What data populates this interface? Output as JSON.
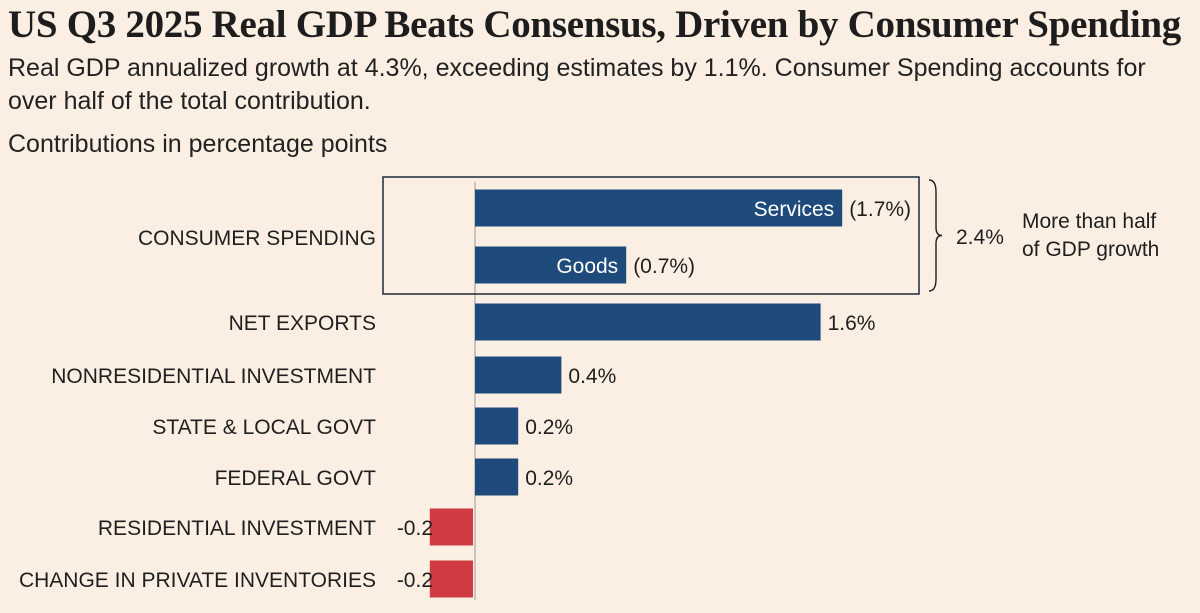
{
  "title": "US Q3 2025 Real GDP Beats Consensus, Driven by Consumer Spending",
  "subtitle": "Real GDP annualized growth at 4.3%, exceeding estimates by 1.1%. Consumer Spending accounts for over half of the total contribution.",
  "units_label": "Contributions in percentage points",
  "colors": {
    "positive": "#1e4a7c",
    "negative": "#d23a43",
    "background": "#fbeee2"
  },
  "chart_data": {
    "type": "bar",
    "orientation": "horizontal",
    "title": "US Q3 2025 Real GDP Beats Consensus, Driven by Consumer Spending",
    "xlabel": "Contributions in percentage points",
    "xlim": [
      -0.2,
      1.7
    ],
    "categories": [
      "CONSUMER SPENDING",
      "NET EXPORTS",
      "NONRESIDENTIAL INVESTMENT",
      "STATE & LOCAL GOVT",
      "FEDERAL GOVT",
      "RESIDENTIAL INVESTMENT",
      "CHANGE IN PRIVATE INVENTORIES"
    ],
    "group": {
      "category": "CONSUMER SPENDING",
      "total_label": "2.4%",
      "total": 2.4,
      "note_lines": [
        "More than half",
        "of GDP growth"
      ],
      "bars": [
        {
          "name": "Services",
          "value": 1.7,
          "value_label": "(1.7%)"
        },
        {
          "name": "Goods",
          "value": 0.7,
          "value_label": "(0.7%)"
        }
      ]
    },
    "bars": [
      {
        "category": "NET EXPORTS",
        "value": 1.6,
        "value_label": "1.6%"
      },
      {
        "category": "NONRESIDENTIAL INVESTMENT",
        "value": 0.4,
        "value_label": "0.4%"
      },
      {
        "category": "STATE & LOCAL GOVT",
        "value": 0.2,
        "value_label": "0.2%"
      },
      {
        "category": "FEDERAL GOVT",
        "value": 0.2,
        "value_label": "0.2%"
      },
      {
        "category": "RESIDENTIAL INVESTMENT",
        "value": -0.2,
        "value_label": "-0.2"
      },
      {
        "category": "CHANGE IN PRIVATE INVENTORIES",
        "value": -0.2,
        "value_label": "-0.2"
      }
    ],
    "grid": false,
    "legend": "none"
  }
}
